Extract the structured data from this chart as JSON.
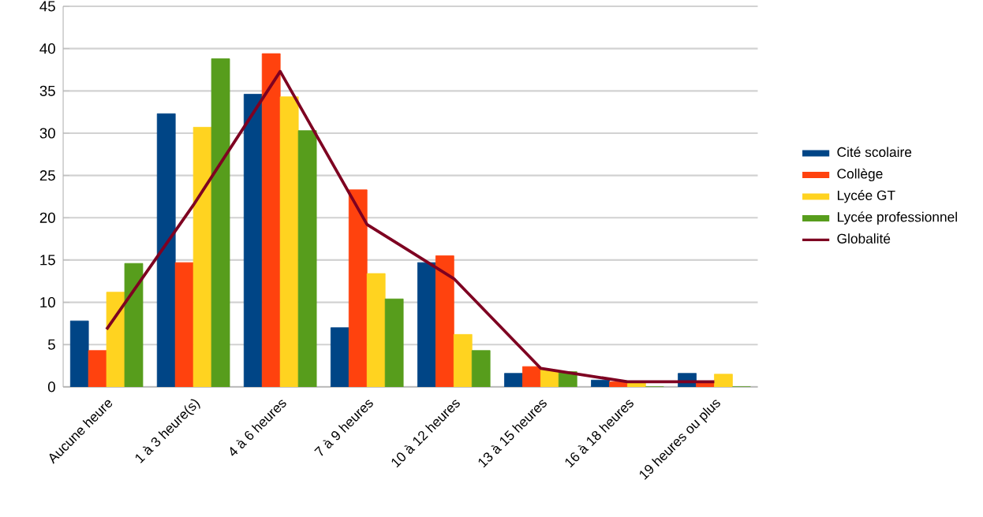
{
  "chart_data": {
    "type": "bar",
    "categories": [
      "Aucune heure",
      "1 à 3 heure(s)",
      "4 à 6 heures",
      "7 à 9 heures",
      "10 à 12 heures",
      "13 à 15 heures",
      "16 à 18 heures",
      "19 heures ou plus"
    ],
    "series": [
      {
        "name": "Cité scolaire",
        "color": "#004586",
        "values": [
          7.8,
          32.3,
          34.6,
          7.0,
          14.7,
          1.6,
          0.8,
          1.6
        ]
      },
      {
        "name": "Collège",
        "color": "#ff420e",
        "values": [
          4.3,
          14.7,
          39.4,
          23.3,
          15.5,
          2.4,
          0.6,
          0.5
        ]
      },
      {
        "name": "Lycée GT",
        "color": "#ffd320",
        "values": [
          11.2,
          30.7,
          34.3,
          13.4,
          6.2,
          2.0,
          0.5,
          1.5
        ]
      },
      {
        "name": "Lycée professionnel",
        "color": "#579d1c",
        "values": [
          14.6,
          38.8,
          30.3,
          10.4,
          4.3,
          1.8,
          0,
          0
        ]
      },
      {
        "name": "Globalité",
        "color": "#7e0021",
        "type": "line",
        "values": [
          6.8,
          21.5,
          37.3,
          19.2,
          12.8,
          2.2,
          0.6,
          0.6
        ]
      }
    ],
    "ylim": [
      0,
      45
    ],
    "yticks": [
      0,
      5,
      10,
      15,
      20,
      25,
      30,
      35,
      40,
      45
    ],
    "grid": "y",
    "legend": "right",
    "marker": "none",
    "line_style": "solid"
  }
}
